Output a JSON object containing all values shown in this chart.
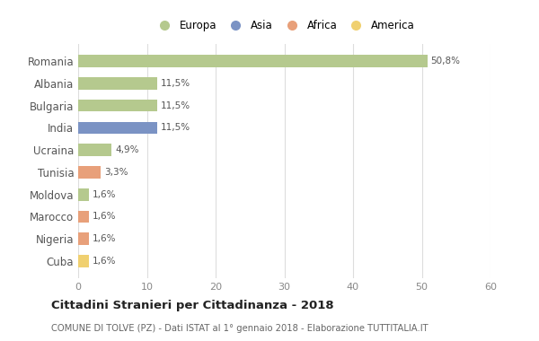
{
  "categories": [
    "Romania",
    "Albania",
    "Bulgaria",
    "India",
    "Ucraina",
    "Tunisia",
    "Moldova",
    "Marocco",
    "Nigeria",
    "Cuba"
  ],
  "values": [
    50.8,
    11.5,
    11.5,
    11.5,
    4.9,
    3.3,
    1.6,
    1.6,
    1.6,
    1.6
  ],
  "labels": [
    "50,8%",
    "11,5%",
    "11,5%",
    "11,5%",
    "4,9%",
    "3,3%",
    "1,6%",
    "1,6%",
    "1,6%",
    "1,6%"
  ],
  "colors": [
    "#b5c98e",
    "#b5c98e",
    "#b5c98e",
    "#7b93c4",
    "#b5c98e",
    "#e8a07a",
    "#b5c98e",
    "#e8a07a",
    "#e8a07a",
    "#f0d070"
  ],
  "legend_labels": [
    "Europa",
    "Asia",
    "Africa",
    "America"
  ],
  "legend_colors": [
    "#b5c98e",
    "#7b93c4",
    "#e8a07a",
    "#f0d070"
  ],
  "xlim": [
    0,
    60
  ],
  "xticks": [
    0,
    10,
    20,
    30,
    40,
    50,
    60
  ],
  "title": "Cittadini Stranieri per Cittadinanza - 2018",
  "subtitle": "COMUNE DI TOLVE (PZ) - Dati ISTAT al 1° gennaio 2018 - Elaborazione TUTTITALIA.IT",
  "background_color": "#ffffff",
  "grid_color": "#dddddd",
  "bar_height": 0.55
}
